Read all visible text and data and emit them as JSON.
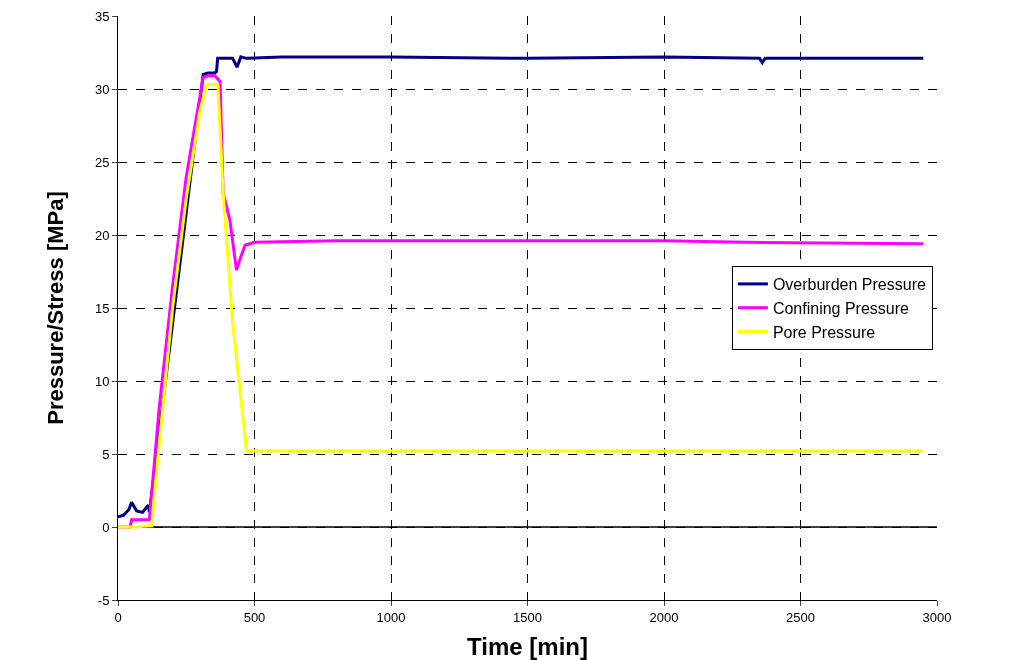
{
  "chart_data": {
    "type": "line",
    "xlabel": "Time [min]",
    "ylabel": "Pressure/Stress [MPa]",
    "xlim": [
      0,
      3000
    ],
    "xticks": [
      0,
      500,
      1000,
      1500,
      2000,
      2500,
      3000
    ],
    "ylim": [
      -5,
      35
    ],
    "yticks": [
      -5,
      0,
      5,
      10,
      15,
      20,
      25,
      30,
      35
    ],
    "grid": true,
    "legend": "right",
    "marker": "none",
    "line_style": "solid",
    "series": [
      {
        "name": "Overburden Pressure",
        "color": "#000080",
        "x": [
          0,
          20,
          40,
          50,
          68,
          90,
          111,
          115,
          312,
          330,
          355,
          361,
          365,
          420,
          436,
          450,
          470,
          600,
          1000,
          1500,
          2000,
          2350,
          2360,
          2370,
          2500,
          2950
        ],
        "values": [
          0.7,
          0.8,
          1.2,
          1.7,
          1.1,
          1.0,
          1.5,
          1.0,
          31.0,
          31.1,
          31.1,
          31.2,
          32.1,
          32.1,
          31.5,
          32.2,
          32.1,
          32.2,
          32.2,
          32.1,
          32.2,
          32.1,
          31.8,
          32.1,
          32.1,
          32.1
        ]
      },
      {
        "name": "Confining Pressure",
        "color": "#ff00ff",
        "x": [
          0,
          44,
          50,
          110,
          115,
          150,
          200,
          250,
          312,
          330,
          355,
          374,
          385,
          410,
          434,
          450,
          465,
          500,
          800,
          1500,
          2000,
          2300,
          2950
        ],
        "values": [
          0.0,
          0.0,
          0.5,
          0.5,
          0.5,
          8.0,
          16.5,
          24.0,
          30.8,
          30.9,
          30.9,
          30.5,
          22.9,
          21.0,
          17.6,
          18.5,
          19.3,
          19.5,
          19.6,
          19.6,
          19.6,
          19.5,
          19.4
        ]
      },
      {
        "name": "Pore Pressure",
        "color": "#ffff00",
        "x": [
          0,
          60,
          123,
          150,
          200,
          250,
          300,
          325,
          340,
          366,
          385,
          420,
          471,
          500,
          1000,
          2000,
          2950
        ],
        "values": [
          0.0,
          0.0,
          0.1,
          5.5,
          15.0,
          22.5,
          28.5,
          30.3,
          30.3,
          30.3,
          22.9,
          14.0,
          5.2,
          5.2,
          5.2,
          5.2,
          5.2
        ]
      }
    ]
  }
}
